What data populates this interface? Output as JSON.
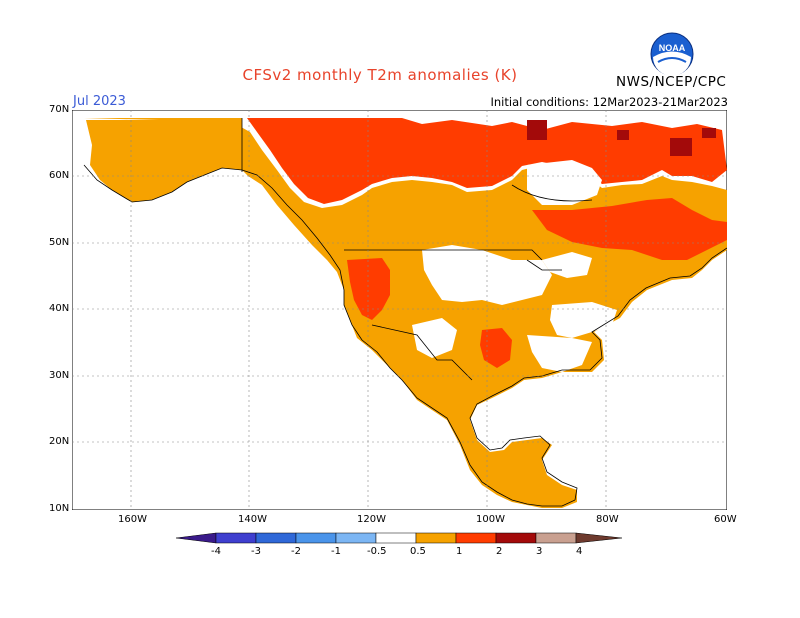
{
  "header": {
    "title": "CFSv2 monthly T2m anomalies (K)",
    "month": "Jul 2023",
    "initial_conditions": "Initial conditions: 12Mar2023-21Mar2023",
    "agency": "NWS/NCEP/CPC",
    "logo_text": "NOAA"
  },
  "axes": {
    "lat_labels": [
      "70N",
      "60N",
      "50N",
      "40N",
      "30N",
      "20N",
      "10N"
    ],
    "lon_labels": [
      "160W",
      "140W",
      "120W",
      "100W",
      "80W",
      "60W"
    ]
  },
  "colorbar": {
    "ticks": [
      "-4",
      "-3",
      "-2",
      "-1",
      "-0.5",
      "0.5",
      "1",
      "2",
      "3",
      "4"
    ],
    "colors": {
      "below_-4": "#3a1a8a",
      "-4_-3": "#3f3fcf",
      "-3_-2": "#2f68d8",
      "-2_-1": "#4a94ea",
      "-1_-0.5": "#7cb6f4",
      "-0.5_0.5": "#ffffff",
      "0.5_1": "#f6a200",
      "1_2": "#ff3c00",
      "2_3": "#a30a0a",
      "3_4": "#c9a090",
      "above_4": "#6e3a2e"
    }
  },
  "map_colors": {
    "ocean": "#ffffff",
    "weak_warm": "#f6a200",
    "warm": "#ff3c00",
    "strong_warm": "#a30a0a",
    "neutral_land": "#ffffff",
    "coastline": "#000000"
  }
}
